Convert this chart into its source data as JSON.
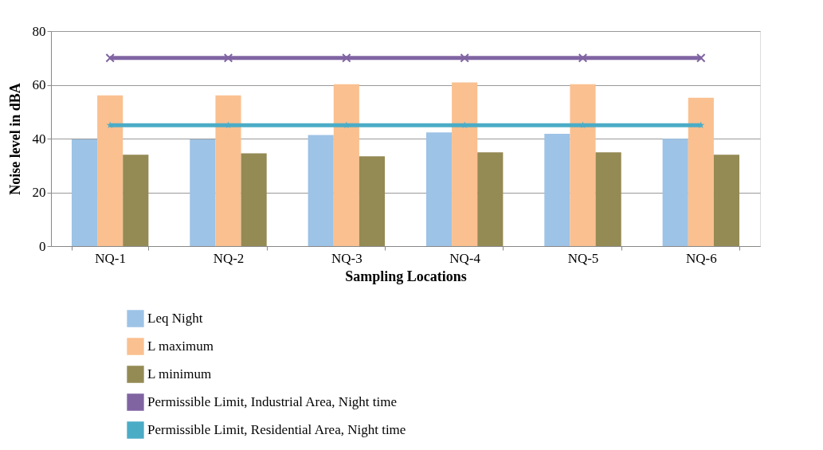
{
  "chart_data": {
    "type": "bar",
    "xlabel": "Sampling Locations",
    "ylabel": "Noise level in dBA",
    "categories": [
      "NQ-1",
      "NQ-2",
      "NQ-3",
      "NQ-4",
      "NQ-5",
      "NQ-6"
    ],
    "series": [
      {
        "name": "Leq Night",
        "color": "#9dc3e6",
        "values": [
          39.7,
          39.7,
          41.3,
          42.3,
          41.8,
          39.9
        ]
      },
      {
        "name": "L maximum",
        "color": "#fac090",
        "values": [
          56.1,
          56.1,
          60.2,
          60.9,
          60.2,
          55.2
        ]
      },
      {
        "name": "L minimum",
        "color": "#948a54",
        "values": [
          34.0,
          34.5,
          33.4,
          34.9,
          34.9,
          34.0
        ]
      },
      {
        "name": "Permissible Limit,  Industrial Area, Night time",
        "type": "line",
        "color": "#8064a2",
        "marker": "cross",
        "values": [
          70,
          70,
          70,
          70,
          70,
          70
        ]
      },
      {
        "name": "Permissible Limit,  Residential Area, Night time",
        "type": "line",
        "color": "#4bacc6",
        "marker": "star",
        "values": [
          45,
          45,
          45,
          45,
          45,
          45
        ]
      }
    ],
    "ylim": [
      0,
      80
    ],
    "yticks": [
      0,
      20,
      40,
      60,
      80
    ],
    "grid": "y",
    "legend": "bottom"
  }
}
